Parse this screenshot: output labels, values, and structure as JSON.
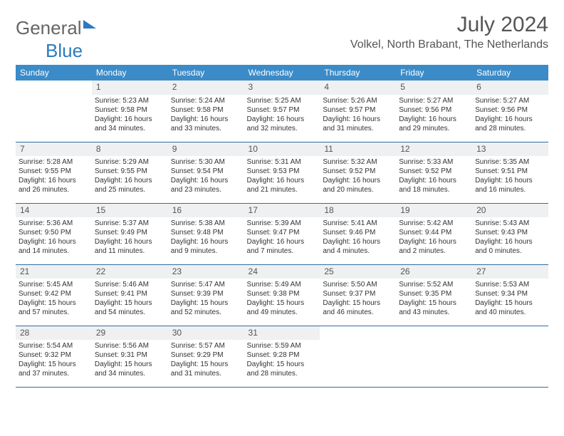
{
  "logo": {
    "part1": "General",
    "part2": "Blue"
  },
  "title": "July 2024",
  "location": "Volkel, North Brabant, The Netherlands",
  "colors": {
    "header_bg": "#3b8bc8",
    "header_text": "#ffffff",
    "daynum_bg": "#eef0f1",
    "rule": "#2f6ea6",
    "text": "#333333",
    "logo_gray": "#666666",
    "logo_blue": "#2a7bbf"
  },
  "weekdays": [
    "Sunday",
    "Monday",
    "Tuesday",
    "Wednesday",
    "Thursday",
    "Friday",
    "Saturday"
  ],
  "weeks": [
    [
      {
        "empty": true
      },
      {
        "day": "1",
        "sunrise": "Sunrise: 5:23 AM",
        "sunset": "Sunset: 9:58 PM",
        "daylight1": "Daylight: 16 hours",
        "daylight2": "and 34 minutes."
      },
      {
        "day": "2",
        "sunrise": "Sunrise: 5:24 AM",
        "sunset": "Sunset: 9:58 PM",
        "daylight1": "Daylight: 16 hours",
        "daylight2": "and 33 minutes."
      },
      {
        "day": "3",
        "sunrise": "Sunrise: 5:25 AM",
        "sunset": "Sunset: 9:57 PM",
        "daylight1": "Daylight: 16 hours",
        "daylight2": "and 32 minutes."
      },
      {
        "day": "4",
        "sunrise": "Sunrise: 5:26 AM",
        "sunset": "Sunset: 9:57 PM",
        "daylight1": "Daylight: 16 hours",
        "daylight2": "and 31 minutes."
      },
      {
        "day": "5",
        "sunrise": "Sunrise: 5:27 AM",
        "sunset": "Sunset: 9:56 PM",
        "daylight1": "Daylight: 16 hours",
        "daylight2": "and 29 minutes."
      },
      {
        "day": "6",
        "sunrise": "Sunrise: 5:27 AM",
        "sunset": "Sunset: 9:56 PM",
        "daylight1": "Daylight: 16 hours",
        "daylight2": "and 28 minutes."
      }
    ],
    [
      {
        "day": "7",
        "sunrise": "Sunrise: 5:28 AM",
        "sunset": "Sunset: 9:55 PM",
        "daylight1": "Daylight: 16 hours",
        "daylight2": "and 26 minutes."
      },
      {
        "day": "8",
        "sunrise": "Sunrise: 5:29 AM",
        "sunset": "Sunset: 9:55 PM",
        "daylight1": "Daylight: 16 hours",
        "daylight2": "and 25 minutes."
      },
      {
        "day": "9",
        "sunrise": "Sunrise: 5:30 AM",
        "sunset": "Sunset: 9:54 PM",
        "daylight1": "Daylight: 16 hours",
        "daylight2": "and 23 minutes."
      },
      {
        "day": "10",
        "sunrise": "Sunrise: 5:31 AM",
        "sunset": "Sunset: 9:53 PM",
        "daylight1": "Daylight: 16 hours",
        "daylight2": "and 21 minutes."
      },
      {
        "day": "11",
        "sunrise": "Sunrise: 5:32 AM",
        "sunset": "Sunset: 9:52 PM",
        "daylight1": "Daylight: 16 hours",
        "daylight2": "and 20 minutes."
      },
      {
        "day": "12",
        "sunrise": "Sunrise: 5:33 AM",
        "sunset": "Sunset: 9:52 PM",
        "daylight1": "Daylight: 16 hours",
        "daylight2": "and 18 minutes."
      },
      {
        "day": "13",
        "sunrise": "Sunrise: 5:35 AM",
        "sunset": "Sunset: 9:51 PM",
        "daylight1": "Daylight: 16 hours",
        "daylight2": "and 16 minutes."
      }
    ],
    [
      {
        "day": "14",
        "sunrise": "Sunrise: 5:36 AM",
        "sunset": "Sunset: 9:50 PM",
        "daylight1": "Daylight: 16 hours",
        "daylight2": "and 14 minutes."
      },
      {
        "day": "15",
        "sunrise": "Sunrise: 5:37 AM",
        "sunset": "Sunset: 9:49 PM",
        "daylight1": "Daylight: 16 hours",
        "daylight2": "and 11 minutes."
      },
      {
        "day": "16",
        "sunrise": "Sunrise: 5:38 AM",
        "sunset": "Sunset: 9:48 PM",
        "daylight1": "Daylight: 16 hours",
        "daylight2": "and 9 minutes."
      },
      {
        "day": "17",
        "sunrise": "Sunrise: 5:39 AM",
        "sunset": "Sunset: 9:47 PM",
        "daylight1": "Daylight: 16 hours",
        "daylight2": "and 7 minutes."
      },
      {
        "day": "18",
        "sunrise": "Sunrise: 5:41 AM",
        "sunset": "Sunset: 9:46 PM",
        "daylight1": "Daylight: 16 hours",
        "daylight2": "and 4 minutes."
      },
      {
        "day": "19",
        "sunrise": "Sunrise: 5:42 AM",
        "sunset": "Sunset: 9:44 PM",
        "daylight1": "Daylight: 16 hours",
        "daylight2": "and 2 minutes."
      },
      {
        "day": "20",
        "sunrise": "Sunrise: 5:43 AM",
        "sunset": "Sunset: 9:43 PM",
        "daylight1": "Daylight: 16 hours",
        "daylight2": "and 0 minutes."
      }
    ],
    [
      {
        "day": "21",
        "sunrise": "Sunrise: 5:45 AM",
        "sunset": "Sunset: 9:42 PM",
        "daylight1": "Daylight: 15 hours",
        "daylight2": "and 57 minutes."
      },
      {
        "day": "22",
        "sunrise": "Sunrise: 5:46 AM",
        "sunset": "Sunset: 9:41 PM",
        "daylight1": "Daylight: 15 hours",
        "daylight2": "and 54 minutes."
      },
      {
        "day": "23",
        "sunrise": "Sunrise: 5:47 AM",
        "sunset": "Sunset: 9:39 PM",
        "daylight1": "Daylight: 15 hours",
        "daylight2": "and 52 minutes."
      },
      {
        "day": "24",
        "sunrise": "Sunrise: 5:49 AM",
        "sunset": "Sunset: 9:38 PM",
        "daylight1": "Daylight: 15 hours",
        "daylight2": "and 49 minutes."
      },
      {
        "day": "25",
        "sunrise": "Sunrise: 5:50 AM",
        "sunset": "Sunset: 9:37 PM",
        "daylight1": "Daylight: 15 hours",
        "daylight2": "and 46 minutes."
      },
      {
        "day": "26",
        "sunrise": "Sunrise: 5:52 AM",
        "sunset": "Sunset: 9:35 PM",
        "daylight1": "Daylight: 15 hours",
        "daylight2": "and 43 minutes."
      },
      {
        "day": "27",
        "sunrise": "Sunrise: 5:53 AM",
        "sunset": "Sunset: 9:34 PM",
        "daylight1": "Daylight: 15 hours",
        "daylight2": "and 40 minutes."
      }
    ],
    [
      {
        "day": "28",
        "sunrise": "Sunrise: 5:54 AM",
        "sunset": "Sunset: 9:32 PM",
        "daylight1": "Daylight: 15 hours",
        "daylight2": "and 37 minutes."
      },
      {
        "day": "29",
        "sunrise": "Sunrise: 5:56 AM",
        "sunset": "Sunset: 9:31 PM",
        "daylight1": "Daylight: 15 hours",
        "daylight2": "and 34 minutes."
      },
      {
        "day": "30",
        "sunrise": "Sunrise: 5:57 AM",
        "sunset": "Sunset: 9:29 PM",
        "daylight1": "Daylight: 15 hours",
        "daylight2": "and 31 minutes."
      },
      {
        "day": "31",
        "sunrise": "Sunrise: 5:59 AM",
        "sunset": "Sunset: 9:28 PM",
        "daylight1": "Daylight: 15 hours",
        "daylight2": "and 28 minutes."
      },
      {
        "empty": true
      },
      {
        "empty": true
      },
      {
        "empty": true
      }
    ]
  ]
}
